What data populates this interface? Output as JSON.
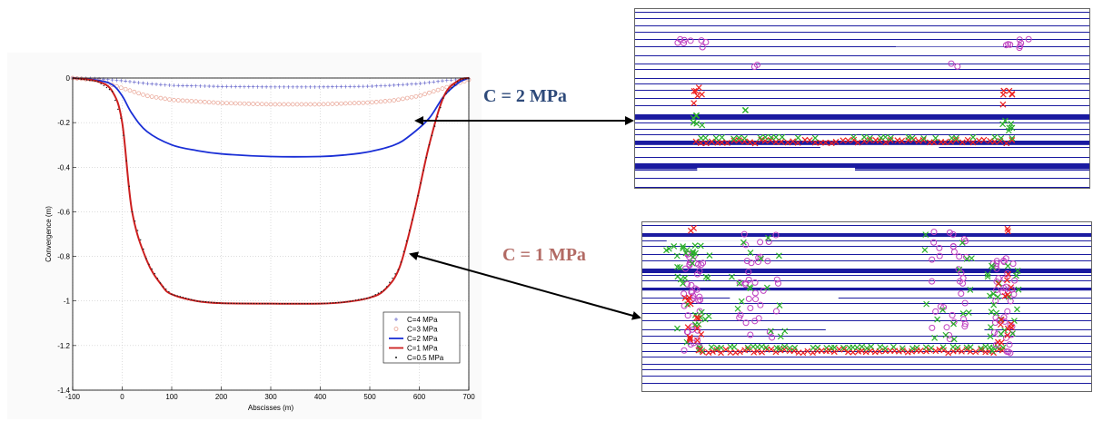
{
  "colors": {
    "c4": "#6a6acc",
    "c3": "#e8a090",
    "c2": "#1a2fd6",
    "c1": "#cc1f1f",
    "c05": "#1a1a1a",
    "callout_2": "#2e4a7a",
    "callout_1": "#b26a64",
    "sim_layer": "#1a1aa0",
    "sim_red": "#ee2020",
    "sim_green": "#2ab02a",
    "sim_magenta": "#c040c0"
  },
  "chart_data": {
    "type": "line",
    "xlabel": "Abscisses (m)",
    "ylabel": "Convergence (m)",
    "xlim": [
      -100,
      700
    ],
    "ylim": [
      -1.4,
      0
    ],
    "x_ticks": [
      -100,
      0,
      100,
      200,
      300,
      400,
      500,
      600,
      700
    ],
    "y_ticks": [
      0,
      -0.2,
      -0.4,
      -0.6,
      -0.8,
      -1,
      -1.2,
      -1.4
    ],
    "x_tick_labels": [
      "-100",
      "0",
      "100",
      "200",
      "300",
      "400",
      "500",
      "600",
      "700"
    ],
    "y_tick_labels": [
      "0",
      "-0.2",
      "-0.4",
      "-0.6",
      "-0.8",
      "-1",
      "-1.2",
      "-1.4"
    ],
    "grid": true,
    "legend_position": "bottom-right",
    "series": [
      {
        "name": "C=4 MPa",
        "marker": "plus",
        "color_key": "c4",
        "x": [
          -100,
          -50,
          0,
          50,
          100,
          200,
          300,
          400,
          500,
          550,
          600,
          650,
          700
        ],
        "y": [
          0,
          -0.003,
          -0.012,
          -0.025,
          -0.033,
          -0.038,
          -0.04,
          -0.04,
          -0.037,
          -0.032,
          -0.025,
          -0.012,
          -0.003
        ]
      },
      {
        "name": "C=3 MPa",
        "marker": "circle",
        "color_key": "c3",
        "x": [
          -100,
          -50,
          0,
          50,
          100,
          200,
          300,
          400,
          500,
          550,
          600,
          650,
          700
        ],
        "y": [
          0,
          -0.01,
          -0.045,
          -0.08,
          -0.098,
          -0.112,
          -0.118,
          -0.118,
          -0.11,
          -0.1,
          -0.08,
          -0.045,
          -0.008
        ]
      },
      {
        "name": "C=2 MPa",
        "marker": "line",
        "color_key": "c2",
        "x": [
          -100,
          -50,
          -20,
          0,
          20,
          50,
          100,
          150,
          200,
          300,
          400,
          450,
          500,
          550,
          580,
          620,
          650,
          680,
          700
        ],
        "y": [
          0,
          -0.01,
          -0.03,
          -0.08,
          -0.16,
          -0.24,
          -0.3,
          -0.325,
          -0.34,
          -0.352,
          -0.352,
          -0.345,
          -0.33,
          -0.3,
          -0.26,
          -0.18,
          -0.08,
          -0.02,
          0
        ]
      },
      {
        "name": "C=1 MPa",
        "marker": "line",
        "color_key": "c1",
        "x": [
          -100,
          -50,
          -20,
          0,
          20,
          50,
          80,
          100,
          150,
          200,
          300,
          400,
          450,
          500,
          530,
          560,
          590,
          620,
          650,
          680,
          700
        ],
        "y": [
          0,
          -0.015,
          -0.06,
          -0.2,
          -0.6,
          -0.82,
          -0.93,
          -0.97,
          -1.0,
          -1.01,
          -1.012,
          -1.012,
          -1.005,
          -0.985,
          -0.95,
          -0.85,
          -0.6,
          -0.3,
          -0.08,
          -0.01,
          0
        ]
      },
      {
        "name": "C=0.5 MPa",
        "marker": "dot",
        "color_key": "c05",
        "x": [
          -100,
          -50,
          -20,
          0,
          20,
          50,
          80,
          100,
          150,
          200,
          300,
          400,
          450,
          500,
          530,
          560,
          590,
          620,
          650,
          680,
          700
        ],
        "y": [
          0,
          -0.015,
          -0.06,
          -0.2,
          -0.6,
          -0.82,
          -0.93,
          -0.97,
          -1.0,
          -1.01,
          -1.012,
          -1.012,
          -1.005,
          -0.985,
          -0.95,
          -0.85,
          -0.6,
          -0.3,
          -0.08,
          -0.01,
          0
        ]
      }
    ]
  },
  "annotations": {
    "callout_2": "C = 2 MPa",
    "callout_1": "C = 1 MPa"
  }
}
